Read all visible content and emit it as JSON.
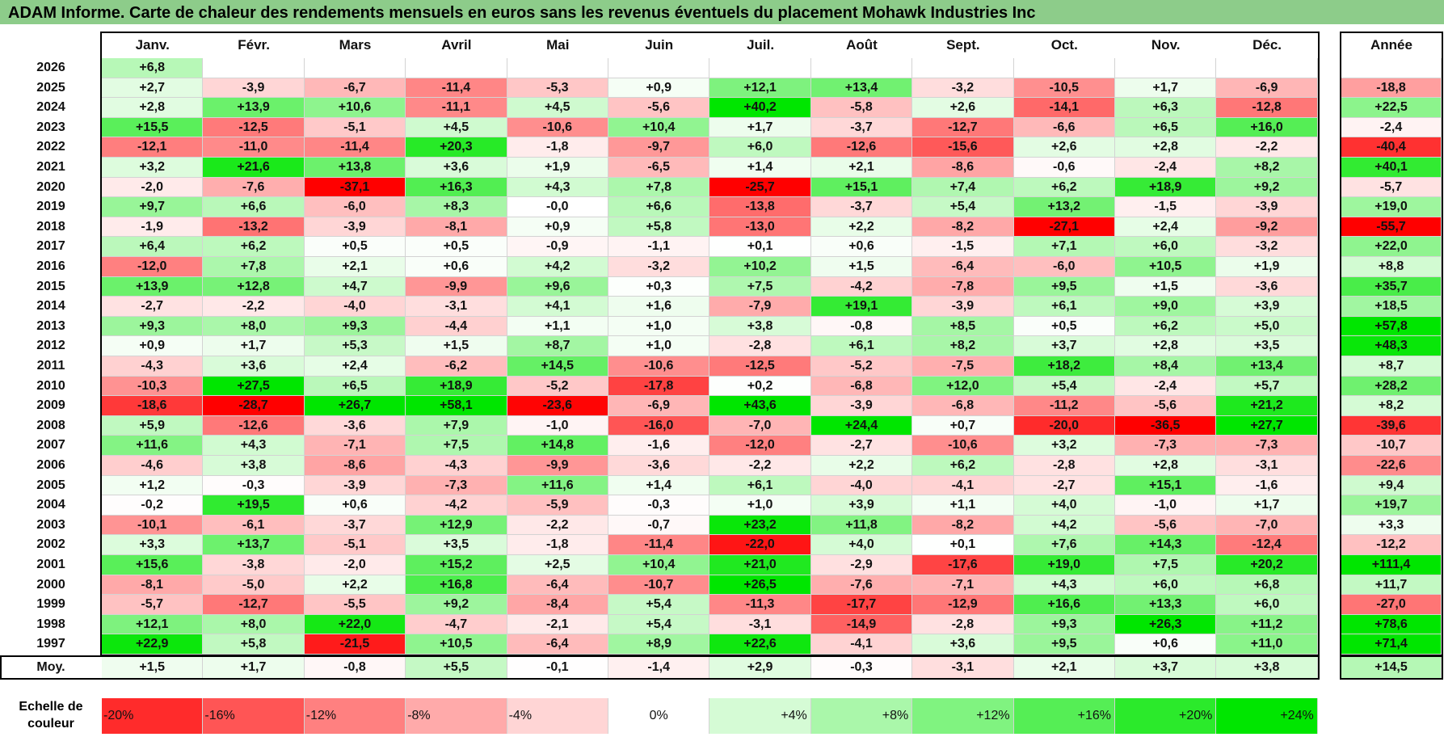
{
  "title": "ADAM Informe. Carte de chaleur des rendements mensuels en euros sans les revenus éventuels du placement Mohawk Industries Inc",
  "chart_data": {
    "type": "heatmap",
    "title": "ADAM Informe. Carte de chaleur des rendements mensuels en euros sans les revenus éventuels du placement Mohawk Industries Inc",
    "months": [
      "Janv.",
      "Févr.",
      "Mars",
      "Avril",
      "Mai",
      "Juin",
      "Juil.",
      "Août",
      "Sept.",
      "Oct.",
      "Nov.",
      "Déc."
    ],
    "annual_header": "Année",
    "rows": [
      {
        "year": "2026",
        "values": [
          "+6,8",
          "",
          "",
          "",
          "",
          "",
          "",
          "",
          "",
          "",
          "",
          ""
        ],
        "annual": ""
      },
      {
        "year": "2025",
        "values": [
          "+2,7",
          "-3,9",
          "-6,7",
          "-11,4",
          "-5,3",
          "+0,9",
          "+12,1",
          "+13,4",
          "-3,2",
          "-10,5",
          "+1,7",
          "-6,9"
        ],
        "annual": "-18,8"
      },
      {
        "year": "2024",
        "values": [
          "+2,8",
          "+13,9",
          "+10,6",
          "-11,1",
          "+4,5",
          "-5,6",
          "+40,2",
          "-5,8",
          "+2,6",
          "-14,1",
          "+6,3",
          "-12,8"
        ],
        "annual": "+22,5"
      },
      {
        "year": "2023",
        "values": [
          "+15,5",
          "-12,5",
          "-5,1",
          "+4,5",
          "-10,6",
          "+10,4",
          "+1,7",
          "-3,7",
          "-12,7",
          "-6,6",
          "+6,5",
          "+16,0"
        ],
        "annual": "-2,4"
      },
      {
        "year": "2022",
        "values": [
          "-12,1",
          "-11,0",
          "-11,4",
          "+20,3",
          "-1,8",
          "-9,7",
          "+6,0",
          "-12,6",
          "-15,6",
          "+2,6",
          "+2,8",
          "-2,2"
        ],
        "annual": "-40,4"
      },
      {
        "year": "2021",
        "values": [
          "+3,2",
          "+21,6",
          "+13,8",
          "+3,6",
          "+1,9",
          "-6,5",
          "+1,4",
          "+2,1",
          "-8,6",
          "-0,6",
          "-2,4",
          "+8,2"
        ],
        "annual": "+40,1"
      },
      {
        "year": "2020",
        "values": [
          "-2,0",
          "-7,6",
          "-37,1",
          "+16,3",
          "+4,3",
          "+7,8",
          "-25,7",
          "+15,1",
          "+7,4",
          "+6,2",
          "+18,9",
          "+9,2"
        ],
        "annual": "-5,7"
      },
      {
        "year": "2019",
        "values": [
          "+9,7",
          "+6,6",
          "-6,0",
          "+8,3",
          "-0,0",
          "+6,6",
          "-13,8",
          "-3,7",
          "+5,4",
          "+13,2",
          "-1,5",
          "-3,9"
        ],
        "annual": "+19,0"
      },
      {
        "year": "2018",
        "values": [
          "-1,9",
          "-13,2",
          "-3,9",
          "-8,1",
          "+0,9",
          "+5,8",
          "-13,0",
          "+2,2",
          "-8,2",
          "-27,1",
          "+2,4",
          "-9,2"
        ],
        "annual": "-55,7"
      },
      {
        "year": "2017",
        "values": [
          "+6,4",
          "+6,2",
          "+0,5",
          "+0,5",
          "-0,9",
          "-1,1",
          "+0,1",
          "+0,6",
          "-1,5",
          "+7,1",
          "+6,0",
          "-3,2"
        ],
        "annual": "+22,0"
      },
      {
        "year": "2016",
        "values": [
          "-12,0",
          "+7,8",
          "+2,1",
          "+0,6",
          "+4,2",
          "-3,2",
          "+10,2",
          "+1,5",
          "-6,4",
          "-6,0",
          "+10,5",
          "+1,9"
        ],
        "annual": "+8,8"
      },
      {
        "year": "2015",
        "values": [
          "+13,9",
          "+12,8",
          "+4,7",
          "-9,9",
          "+9,6",
          "+0,3",
          "+7,5",
          "-4,2",
          "-7,8",
          "+9,5",
          "+1,5",
          "-3,6"
        ],
        "annual": "+35,7"
      },
      {
        "year": "2014",
        "values": [
          "-2,7",
          "-2,2",
          "-4,0",
          "-3,1",
          "+4,1",
          "+1,6",
          "-7,9",
          "+19,1",
          "-3,9",
          "+6,1",
          "+9,0",
          "+3,9"
        ],
        "annual": "+18,5"
      },
      {
        "year": "2013",
        "values": [
          "+9,3",
          "+8,0",
          "+9,3",
          "-4,4",
          "+1,1",
          "+1,0",
          "+3,8",
          "-0,8",
          "+8,5",
          "+0,5",
          "+6,2",
          "+5,0"
        ],
        "annual": "+57,8"
      },
      {
        "year": "2012",
        "values": [
          "+0,9",
          "+1,7",
          "+5,3",
          "+1,5",
          "+8,7",
          "+1,0",
          "-2,8",
          "+6,1",
          "+8,2",
          "+3,7",
          "+2,8",
          "+3,5"
        ],
        "annual": "+48,3"
      },
      {
        "year": "2011",
        "values": [
          "-4,3",
          "+3,6",
          "+2,4",
          "-6,2",
          "+14,5",
          "-10,6",
          "-12,5",
          "-5,2",
          "-7,5",
          "+18,2",
          "+8,4",
          "+13,4"
        ],
        "annual": "+8,7"
      },
      {
        "year": "2010",
        "values": [
          "-10,3",
          "+27,5",
          "+6,5",
          "+18,9",
          "-5,2",
          "-17,8",
          "+0,2",
          "-6,8",
          "+12,0",
          "+5,4",
          "-2,4",
          "+5,7"
        ],
        "annual": "+28,2"
      },
      {
        "year": "2009",
        "values": [
          "-18,6",
          "-28,7",
          "+26,7",
          "+58,1",
          "-23,6",
          "-6,9",
          "+43,6",
          "-3,9",
          "-6,8",
          "-11,2",
          "-5,6",
          "+21,2"
        ],
        "annual": "+8,2"
      },
      {
        "year": "2008",
        "values": [
          "+5,9",
          "-12,6",
          "-3,6",
          "+7,9",
          "-1,0",
          "-16,0",
          "-7,0",
          "+24,4",
          "+0,7",
          "-20,0",
          "-36,5",
          "+27,7"
        ],
        "annual": "-39,6"
      },
      {
        "year": "2007",
        "values": [
          "+11,6",
          "+4,3",
          "-7,1",
          "+7,5",
          "+14,8",
          "-1,6",
          "-12,0",
          "-2,7",
          "-10,6",
          "+3,2",
          "-7,3",
          "-7,3"
        ],
        "annual": "-10,7"
      },
      {
        "year": "2006",
        "values": [
          "-4,6",
          "+3,8",
          "-8,6",
          "-4,3",
          "-9,9",
          "-3,6",
          "-2,2",
          "+2,2",
          "+6,2",
          "-2,8",
          "+2,8",
          "-3,1"
        ],
        "annual": "-22,6"
      },
      {
        "year": "2005",
        "values": [
          "+1,2",
          "-0,3",
          "-3,9",
          "-7,3",
          "+11,6",
          "+1,4",
          "+6,1",
          "-4,0",
          "-4,1",
          "-2,7",
          "+15,1",
          "-1,6"
        ],
        "annual": "+9,4"
      },
      {
        "year": "2004",
        "values": [
          "-0,2",
          "+19,5",
          "+0,6",
          "-4,2",
          "-5,9",
          "-0,3",
          "+1,0",
          "+3,9",
          "+1,1",
          "+4,0",
          "-1,0",
          "+1,7"
        ],
        "annual": "+19,7"
      },
      {
        "year": "2003",
        "values": [
          "-10,1",
          "-6,1",
          "-3,7",
          "+12,9",
          "-2,2",
          "-0,7",
          "+23,2",
          "+11,8",
          "-8,2",
          "+4,2",
          "-5,6",
          "-7,0"
        ],
        "annual": "+3,3"
      },
      {
        "year": "2002",
        "values": [
          "+3,3",
          "+13,7",
          "-5,1",
          "+3,5",
          "-1,8",
          "-11,4",
          "-22,0",
          "+4,0",
          "+0,1",
          "+7,6",
          "+14,3",
          "-12,4"
        ],
        "annual": "-12,2"
      },
      {
        "year": "2001",
        "values": [
          "+15,6",
          "-3,8",
          "-2,0",
          "+15,2",
          "+2,5",
          "+10,4",
          "+21,0",
          "-2,9",
          "-17,6",
          "+19,0",
          "+7,5",
          "+20,2"
        ],
        "annual": "+111,4"
      },
      {
        "year": "2000",
        "values": [
          "-8,1",
          "-5,0",
          "+2,2",
          "+16,8",
          "-6,4",
          "-10,7",
          "+26,5",
          "-7,6",
          "-7,1",
          "+4,3",
          "+6,0",
          "+6,8"
        ],
        "annual": "+11,7"
      },
      {
        "year": "1999",
        "values": [
          "-5,7",
          "-12,7",
          "-5,5",
          "+9,2",
          "-8,4",
          "+5,4",
          "-11,3",
          "-17,7",
          "-12,9",
          "+16,6",
          "+13,3",
          "+6,0"
        ],
        "annual": "-27,0"
      },
      {
        "year": "1998",
        "values": [
          "+12,1",
          "+8,0",
          "+22,0",
          "-4,7",
          "-2,1",
          "+5,4",
          "-3,1",
          "-14,9",
          "-2,8",
          "+9,3",
          "+26,3",
          "+11,2"
        ],
        "annual": "+78,6"
      },
      {
        "year": "1997",
        "values": [
          "+22,9",
          "+5,8",
          "-21,5",
          "+10,5",
          "-6,4",
          "+8,9",
          "+22,6",
          "-4,1",
          "+3,6",
          "+9,5",
          "+0,6",
          "+11,0"
        ],
        "annual": "+71,4"
      }
    ],
    "average": {
      "label": "Moy.",
      "values": [
        "+1,5",
        "+1,7",
        "-0,8",
        "+5,5",
        "-0,1",
        "-1,4",
        "+2,9",
        "-0,3",
        "-3,1",
        "+2,1",
        "+3,7",
        "+3,8"
      ],
      "annual": "+14,5"
    },
    "color_scale": {
      "label_line1": "Echelle de",
      "label_line2": "couleur",
      "stops": [
        "-20%",
        "-16%",
        "-12%",
        "-8%",
        "-4%",
        "0%",
        "+4%",
        "+8%",
        "+12%",
        "+16%",
        "+20%",
        "+24%"
      ],
      "stop_values": [
        -20,
        -16,
        -12,
        -8,
        -4,
        0,
        4,
        8,
        12,
        16,
        20,
        24
      ]
    },
    "colors": {
      "title_bg": "#8dcc8a",
      "positive": "#00e600",
      "negative": "#ff0000",
      "neutral": "#ffffff"
    }
  }
}
